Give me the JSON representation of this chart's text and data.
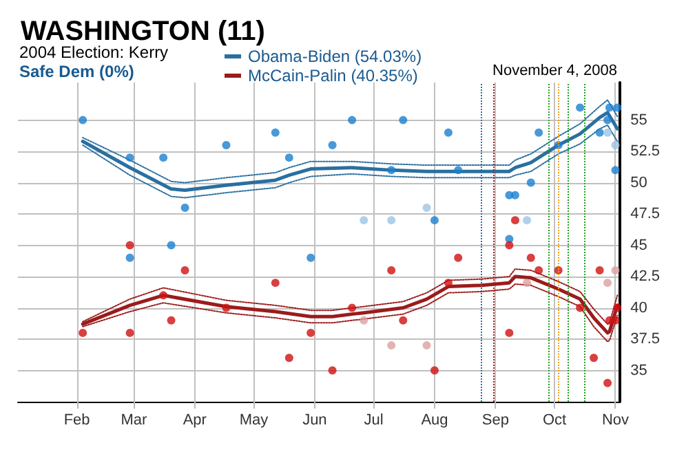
{
  "chart_data": {
    "type": "scatter",
    "title": "WASHINGTON (11)",
    "subtitle": "2004 Election: Kerry",
    "annotations": [
      "Safe Dem (0%)",
      "November 4, 2008"
    ],
    "xlim": [
      "2008-01-02",
      "2008-11-03"
    ],
    "xticks": [
      {
        "value": "2008-02-01",
        "label": "Feb"
      },
      {
        "value": "2008-03-01",
        "label": "Mar"
      },
      {
        "value": "2008-04-01",
        "label": "Apr"
      },
      {
        "value": "2008-05-01",
        "label": "May"
      },
      {
        "value": "2008-06-01",
        "label": "Jun"
      },
      {
        "value": "2008-07-01",
        "label": "Jul"
      },
      {
        "value": "2008-08-01",
        "label": "Aug"
      },
      {
        "value": "2008-09-01",
        "label": "Sep"
      },
      {
        "value": "2008-10-01",
        "label": "Oct"
      },
      {
        "value": "2008-11-01",
        "label": "Nov"
      }
    ],
    "ylim": [
      32.5,
      58
    ],
    "yticks": [
      35,
      37.5,
      40,
      42.5,
      45,
      47.5,
      50,
      52.5,
      55
    ],
    "grid": true,
    "legend": "top",
    "marker": "circle",
    "ref_lines": [
      {
        "axis": "x",
        "value": "2008-08-25",
        "color": "#2a6fa0",
        "line_style": "dotted"
      },
      {
        "axis": "x",
        "value": "2008-08-31",
        "color": "#b02020",
        "line_style": "dotted"
      },
      {
        "axis": "x",
        "value": "2008-09-28",
        "color": "#20a020",
        "line_style": "dotted"
      },
      {
        "axis": "x",
        "value": "2008-10-03",
        "color": "#f0a020",
        "line_style": "dotted"
      },
      {
        "axis": "x",
        "value": "2008-10-08",
        "color": "#20a020",
        "line_style": "dotted"
      },
      {
        "axis": "x",
        "value": "2008-10-16",
        "color": "#20a020",
        "line_style": "dotted"
      }
    ],
    "series": [
      {
        "name": "Obama-Biden (54.03%)",
        "type": "line",
        "marker": "none",
        "line_style": "solid",
        "color": "#2a6fa0",
        "x": [
          "2008-02-04",
          "2008-02-28",
          "2008-03-20",
          "2008-03-27",
          "2008-04-17",
          "2008-05-12",
          "2008-05-19",
          "2008-05-30",
          "2008-06-20",
          "2008-07-10",
          "2008-07-28",
          "2008-08-13",
          "2008-09-08",
          "2008-09-11",
          "2008-09-19",
          "2008-10-03",
          "2008-10-14",
          "2008-10-24",
          "2008-10-28",
          "2008-11-02"
        ],
        "values": [
          53.3,
          51.2,
          49.5,
          49.4,
          49.8,
          50.2,
          50.6,
          51.1,
          51.2,
          51,
          50.9,
          50.9,
          50.9,
          51.2,
          51.6,
          53,
          53.9,
          55.2,
          55.6,
          54.3
        ]
      },
      {
        "type": "line",
        "marker": "none",
        "line_style": "dotted",
        "color": "#2a6fa0",
        "x": [
          "2008-02-04",
          "2008-02-28",
          "2008-03-20",
          "2008-03-27",
          "2008-04-17",
          "2008-05-12",
          "2008-05-19",
          "2008-05-30",
          "2008-06-20",
          "2008-07-10",
          "2008-07-28",
          "2008-08-13",
          "2008-09-08",
          "2008-09-11",
          "2008-09-19",
          "2008-10-03",
          "2008-10-14",
          "2008-10-24",
          "2008-10-28",
          "2008-11-02"
        ],
        "values": [
          53,
          50.6,
          48.9,
          48.8,
          49.2,
          49.6,
          50,
          50.5,
          50.7,
          50.5,
          50.4,
          50.4,
          50.4,
          50.6,
          50.9,
          52.3,
          53.1,
          54.3,
          54.6,
          53.3
        ]
      },
      {
        "type": "line",
        "marker": "none",
        "line_style": "dotted",
        "color": "#2a6fa0",
        "x": [
          "2008-02-04",
          "2008-02-28",
          "2008-03-20",
          "2008-03-27",
          "2008-04-17",
          "2008-05-12",
          "2008-05-19",
          "2008-05-30",
          "2008-06-20",
          "2008-07-10",
          "2008-07-28",
          "2008-08-13",
          "2008-09-08",
          "2008-09-11",
          "2008-09-19",
          "2008-10-03",
          "2008-10-14",
          "2008-10-24",
          "2008-10-28",
          "2008-11-02"
        ],
        "values": [
          53.6,
          51.8,
          50.1,
          50,
          50.4,
          50.8,
          51.2,
          51.7,
          51.7,
          51.5,
          51.4,
          51.4,
          51.4,
          51.8,
          52.3,
          53.7,
          54.7,
          56.1,
          56.6,
          55.3
        ]
      },
      {
        "name": "McCain-Palin (40.35%)",
        "type": "line",
        "marker": "none",
        "line_style": "solid",
        "color": "#9b1b1b",
        "x": [
          "2008-02-04",
          "2008-02-28",
          "2008-03-16",
          "2008-04-17",
          "2008-05-12",
          "2008-05-30",
          "2008-06-10",
          "2008-06-20",
          "2008-06-26",
          "2008-07-16",
          "2008-07-28",
          "2008-08-08",
          "2008-08-25",
          "2008-09-08",
          "2008-09-11",
          "2008-09-19",
          "2008-10-03",
          "2008-10-14",
          "2008-10-21",
          "2008-10-28",
          "2008-10-29",
          "2008-11-02"
        ],
        "values": [
          38.7,
          40.2,
          41,
          40.1,
          39.7,
          39.3,
          39.3,
          39.5,
          39.6,
          40,
          40.7,
          41.7,
          41.8,
          42,
          42.5,
          42.4,
          41.5,
          40.7,
          39.2,
          38,
          38.1,
          40.2
        ]
      },
      {
        "type": "line",
        "marker": "none",
        "line_style": "dotted",
        "color": "#9b1b1b",
        "x": [
          "2008-02-04",
          "2008-02-28",
          "2008-03-16",
          "2008-04-17",
          "2008-05-12",
          "2008-05-30",
          "2008-06-10",
          "2008-06-20",
          "2008-06-26",
          "2008-07-16",
          "2008-07-28",
          "2008-08-08",
          "2008-08-25",
          "2008-09-08",
          "2008-09-11",
          "2008-09-19",
          "2008-10-03",
          "2008-10-14",
          "2008-10-21",
          "2008-10-28",
          "2008-10-29",
          "2008-11-02"
        ],
        "values": [
          38.5,
          39.7,
          40.4,
          39.6,
          39.2,
          38.8,
          38.8,
          39,
          39.1,
          39.5,
          40.2,
          41.2,
          41.3,
          41.5,
          41.9,
          41.8,
          40.9,
          40.1,
          38.5,
          37.3,
          37.4,
          39.4
        ]
      },
      {
        "type": "line",
        "marker": "none",
        "line_style": "dotted",
        "color": "#9b1b1b",
        "x": [
          "2008-02-04",
          "2008-02-28",
          "2008-03-16",
          "2008-04-17",
          "2008-05-12",
          "2008-05-30",
          "2008-06-10",
          "2008-06-20",
          "2008-06-26",
          "2008-07-16",
          "2008-07-28",
          "2008-08-08",
          "2008-08-25",
          "2008-09-08",
          "2008-09-11",
          "2008-09-19",
          "2008-10-03",
          "2008-10-14",
          "2008-10-21",
          "2008-10-28",
          "2008-10-29",
          "2008-11-02"
        ],
        "values": [
          38.9,
          40.7,
          41.6,
          40.6,
          40.2,
          39.8,
          39.8,
          40,
          40.1,
          40.5,
          41.2,
          42.2,
          42.3,
          42.5,
          43.1,
          43,
          42.1,
          41.3,
          39.9,
          38.7,
          38.8,
          41
        ]
      },
      {
        "type": "scatter",
        "color": "#1a80d0",
        "x": [
          "2008-02-04",
          "2008-02-28",
          "2008-02-28",
          "2008-03-16",
          "2008-03-20",
          "2008-03-27",
          "2008-04-17",
          "2008-05-12",
          "2008-05-19",
          "2008-05-30",
          "2008-06-10",
          "2008-06-20",
          "2008-07-10",
          "2008-07-16",
          "2008-08-01",
          "2008-08-08",
          "2008-08-13",
          "2008-09-08",
          "2008-09-08",
          "2008-09-11",
          "2008-09-19",
          "2008-09-23",
          "2008-10-03",
          "2008-10-14",
          "2008-10-24",
          "2008-10-28",
          "2008-10-29",
          "2008-11-02",
          "2008-11-01"
        ],
        "values": [
          55,
          52,
          44,
          52,
          45,
          48,
          53,
          54,
          52,
          44,
          53,
          55,
          51,
          55,
          47,
          54,
          51,
          49,
          45.5,
          49,
          50,
          54,
          53,
          56,
          54,
          55,
          56,
          56,
          51
        ]
      },
      {
        "type": "scatter",
        "color": "#d01010",
        "x": [
          "2008-02-04",
          "2008-02-28",
          "2008-02-28",
          "2008-03-16",
          "2008-03-20",
          "2008-03-27",
          "2008-04-17",
          "2008-05-12",
          "2008-05-19",
          "2008-05-30",
          "2008-06-10",
          "2008-06-20",
          "2008-07-10",
          "2008-07-16",
          "2008-08-01",
          "2008-08-08",
          "2008-08-13",
          "2008-09-08",
          "2008-09-08",
          "2008-09-11",
          "2008-09-19",
          "2008-09-23",
          "2008-10-03",
          "2008-10-14",
          "2008-10-21",
          "2008-10-24",
          "2008-10-28",
          "2008-10-29",
          "2008-11-01",
          "2008-11-02"
        ],
        "values": [
          38,
          45,
          38,
          41,
          39,
          43,
          40,
          42,
          36,
          38,
          35,
          40,
          43,
          39,
          35,
          42,
          44,
          38,
          45,
          47,
          44,
          43,
          43,
          40,
          36,
          43,
          34,
          39,
          39,
          40
        ]
      },
      {
        "type": "scatter",
        "color": "#9cc3e3",
        "x": [
          "2008-06-26",
          "2008-07-10",
          "2008-07-28",
          "2008-09-17",
          "2008-10-28",
          "2008-11-01"
        ],
        "values": [
          47,
          47,
          48,
          47,
          54,
          53
        ]
      },
      {
        "color": "#dca0a0",
        "x": [
          "2008-06-26",
          "2008-07-10",
          "2008-07-28",
          "2008-09-17",
          "2008-10-28",
          "2008-11-01"
        ],
        "values": [
          39,
          37,
          37,
          42,
          42,
          43
        ]
      }
    ]
  }
}
